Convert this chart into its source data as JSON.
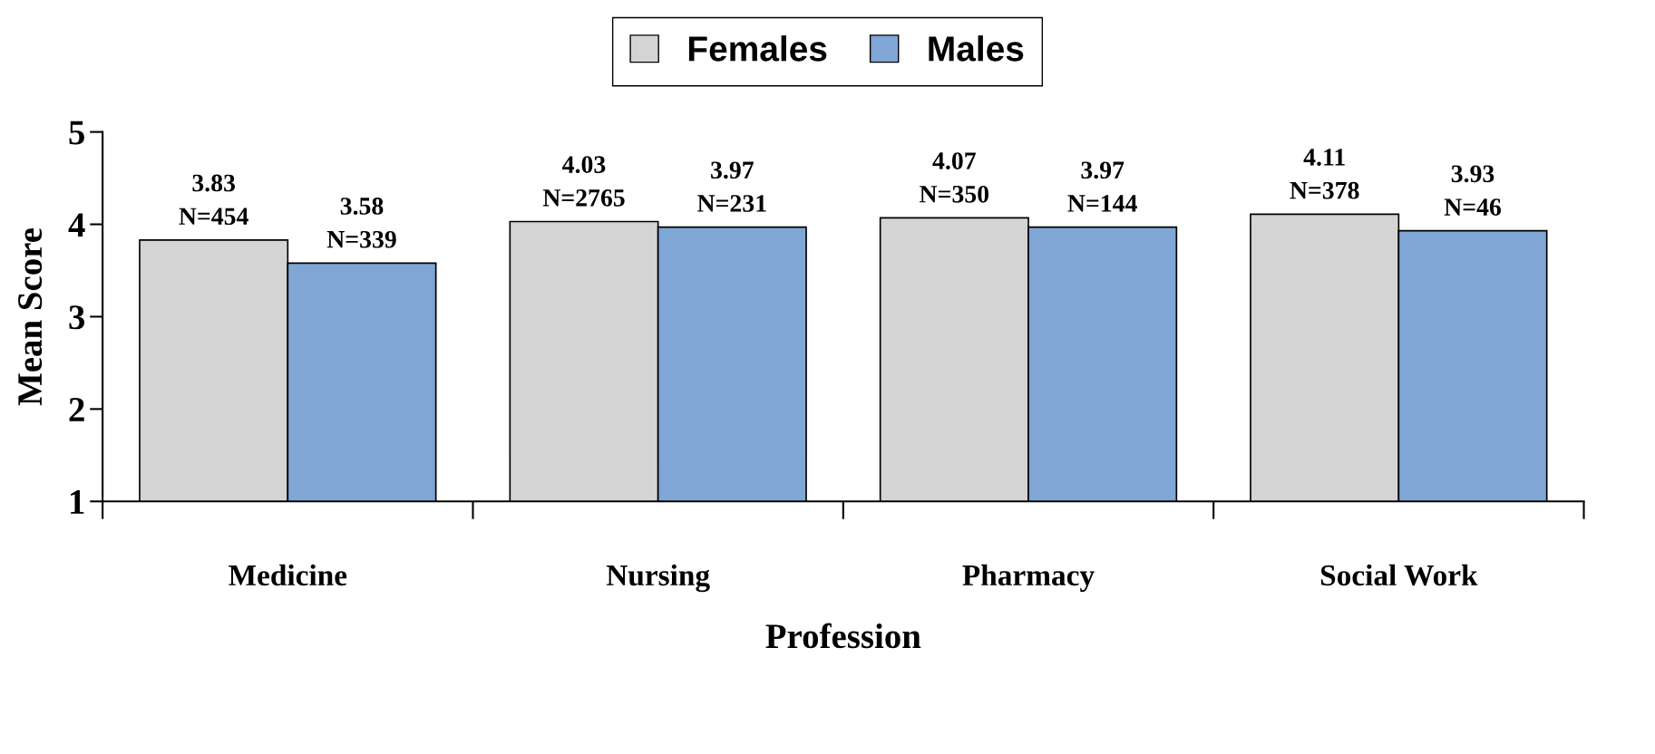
{
  "chart_data": {
    "type": "bar",
    "xlabel": "Profession",
    "ylabel": "Mean Score",
    "categories": [
      "Medicine",
      "Nursing",
      "Pharmacy",
      "Social Work"
    ],
    "series": [
      {
        "name": "Females",
        "color": "#d4d4d4",
        "values": [
          3.83,
          4.03,
          4.07,
          4.11
        ],
        "value_labels": [
          "3.83\nN=454",
          "4.03\nN=2765",
          "4.07\nN=350",
          "4.11\nN=378"
        ]
      },
      {
        "name": "Males",
        "color": "#7fa6d4",
        "values": [
          3.58,
          3.97,
          3.97,
          3.93
        ],
        "value_labels": [
          "3.58\nN=339",
          "3.97\nN=231",
          "3.97\nN=144",
          "3.93\nN=46"
        ]
      }
    ],
    "ylim": [
      1,
      5
    ],
    "yticks": [
      1,
      2,
      3,
      4,
      5
    ],
    "grid": false,
    "legend": "top"
  }
}
